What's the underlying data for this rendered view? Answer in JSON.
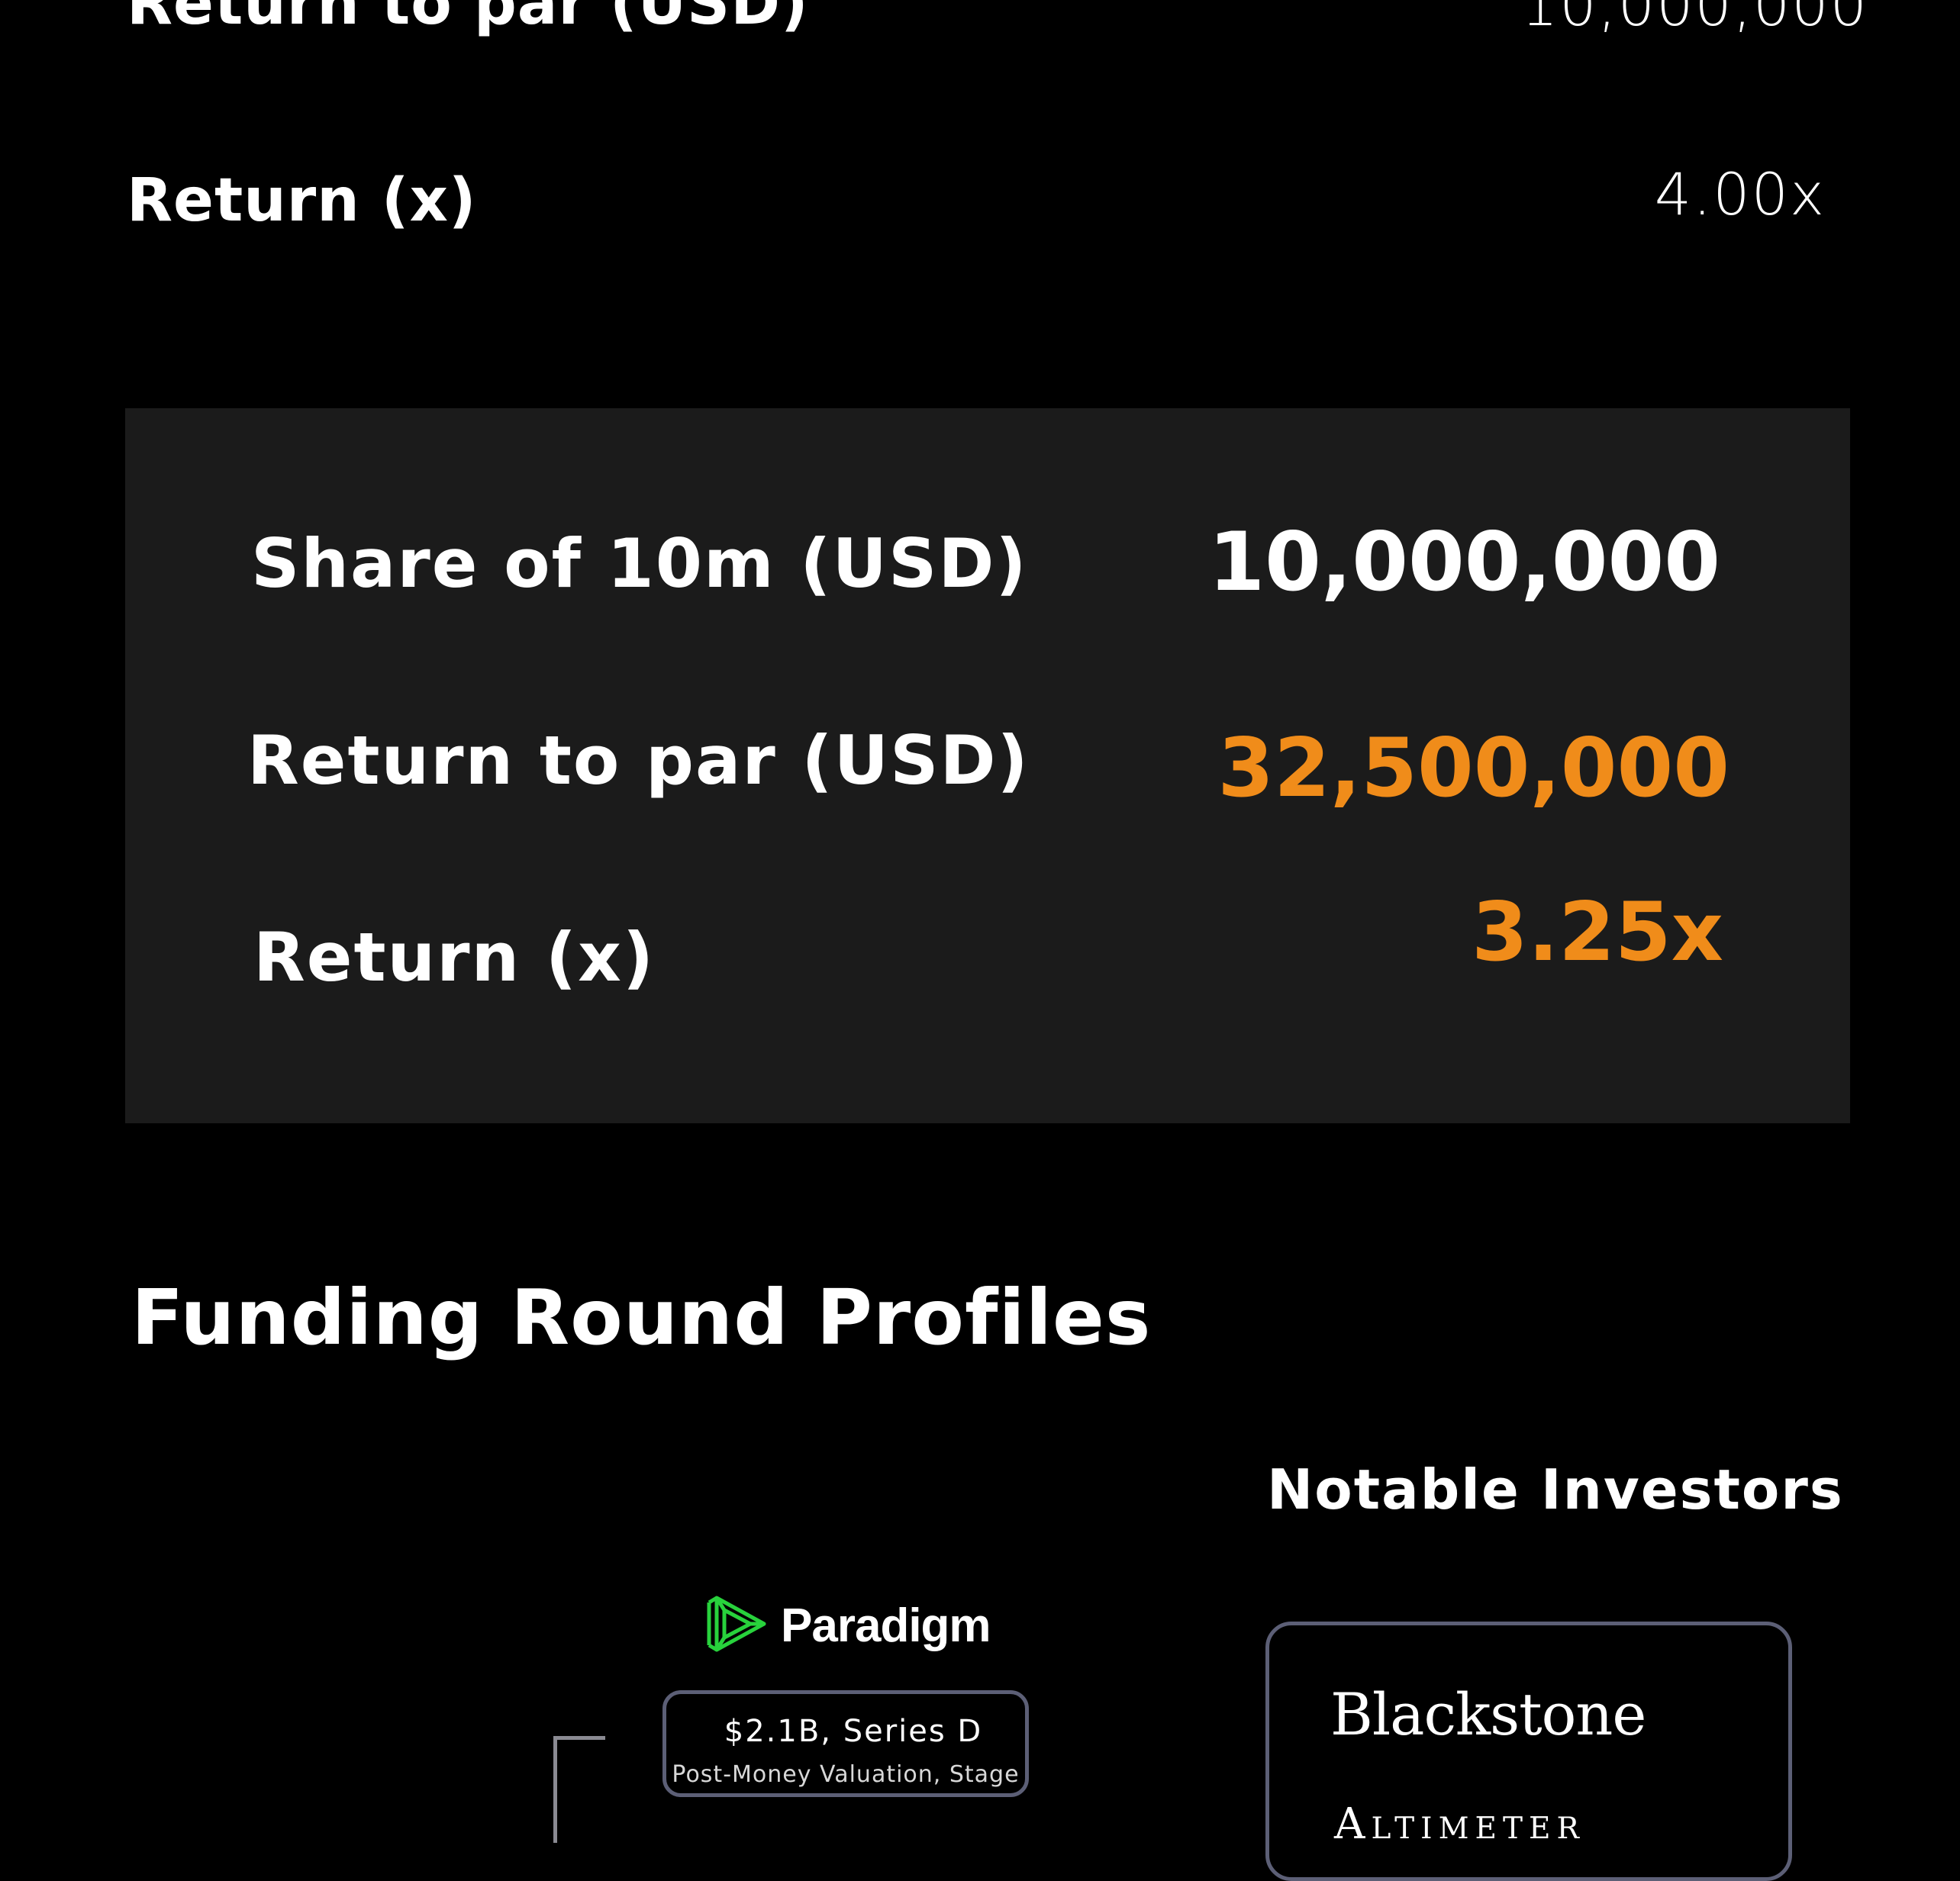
{
  "colors": {
    "background": "#000000",
    "card_background": "#1b1b1b",
    "accent_orange": "#f08c1a",
    "box_border": "#5c5f76",
    "paradigm_green": "#28d23c"
  },
  "previous_summary": {
    "return_to_par_label": "Return to par (USD)",
    "return_to_par_value": "10,000,000",
    "return_x_label": "Return (x)",
    "return_x_value": "4.00x"
  },
  "highlight_card": {
    "share_label": "Share of 10m (USD)",
    "share_value": "10,000,000",
    "return_to_par_label": "Return to par (USD)",
    "return_to_par_value": "32,500,000",
    "return_x_label": "Return (x)",
    "return_x_value": "3.25x"
  },
  "funding_section": {
    "title": "Funding Round Profiles",
    "notable_investors_title": "Notable Investors",
    "lead_investor": {
      "name": "Paradigm",
      "icon": "paradigm-logo-icon"
    },
    "round": {
      "main": "$2.1B, Series D",
      "sub": "Post-Money Valuation, Stage"
    },
    "investors": [
      "Blackstone",
      "Altimeter"
    ]
  }
}
